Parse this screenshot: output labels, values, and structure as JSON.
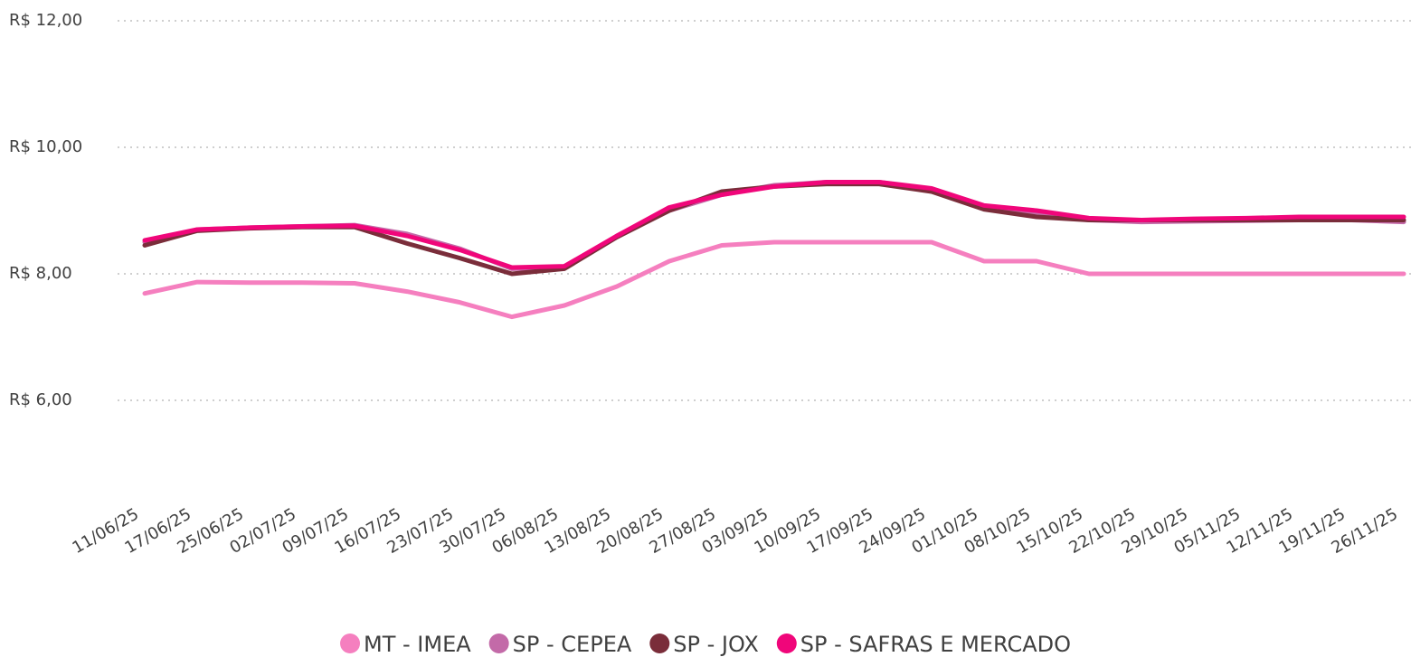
{
  "chart_data": {
    "type": "line",
    "categories": [
      "11/06/25",
      "17/06/25",
      "25/06/25",
      "02/07/25",
      "09/07/25",
      "16/07/25",
      "23/07/25",
      "30/07/25",
      "06/08/25",
      "13/08/25",
      "20/08/25",
      "27/08/25",
      "03/09/25",
      "10/09/25",
      "17/09/25",
      "24/09/25",
      "01/10/25",
      "08/10/25",
      "15/10/25",
      "22/10/25",
      "29/10/25",
      "05/11/25",
      "12/11/25",
      "19/11/25",
      "26/11/25"
    ],
    "series": [
      {
        "name": "MT - IMEA",
        "color": "#f57fbf",
        "values": [
          7.69,
          7.87,
          7.86,
          7.86,
          7.85,
          7.72,
          7.55,
          7.32,
          7.5,
          7.8,
          8.2,
          8.45,
          8.5,
          8.5,
          8.5,
          8.5,
          8.2,
          8.2,
          8.0,
          8.0,
          8.0,
          8.0,
          8.0,
          8.0,
          8.0
        ]
      },
      {
        "name": "SP - CEPEA",
        "color": "#c36aa8",
        "values": [
          8.5,
          8.7,
          8.73,
          8.75,
          8.77,
          8.63,
          8.4,
          8.08,
          8.1,
          8.6,
          9.0,
          9.25,
          9.4,
          9.45,
          9.45,
          9.33,
          9.05,
          8.95,
          8.85,
          8.82,
          8.83,
          8.84,
          8.85,
          8.85,
          8.82
        ]
      },
      {
        "name": "SP - JOX",
        "color": "#7a2d3a",
        "values": [
          8.45,
          8.68,
          8.72,
          8.74,
          8.74,
          8.48,
          8.25,
          8.0,
          8.08,
          8.58,
          9.0,
          9.3,
          9.38,
          9.42,
          9.42,
          9.3,
          9.02,
          8.9,
          8.85,
          8.85,
          8.85,
          8.85,
          8.85,
          8.85,
          8.85
        ]
      },
      {
        "name": "SP - SAFRAS E MERCADO",
        "color": "#f0067a",
        "values": [
          8.53,
          8.7,
          8.73,
          8.75,
          8.76,
          8.6,
          8.38,
          8.1,
          8.12,
          8.6,
          9.05,
          9.25,
          9.38,
          9.45,
          9.45,
          9.35,
          9.08,
          9.0,
          8.88,
          8.85,
          8.87,
          8.88,
          8.9,
          8.9,
          8.9
        ]
      }
    ],
    "ylim": [
      5,
      12
    ],
    "yticks": [
      {
        "value": 6,
        "label": "R$ 6,00"
      },
      {
        "value": 8,
        "label": "R$ 8,00"
      },
      {
        "value": 10,
        "label": "R$ 10,00"
      },
      {
        "value": 12,
        "label": "R$ 12,00"
      }
    ],
    "grid": true
  }
}
